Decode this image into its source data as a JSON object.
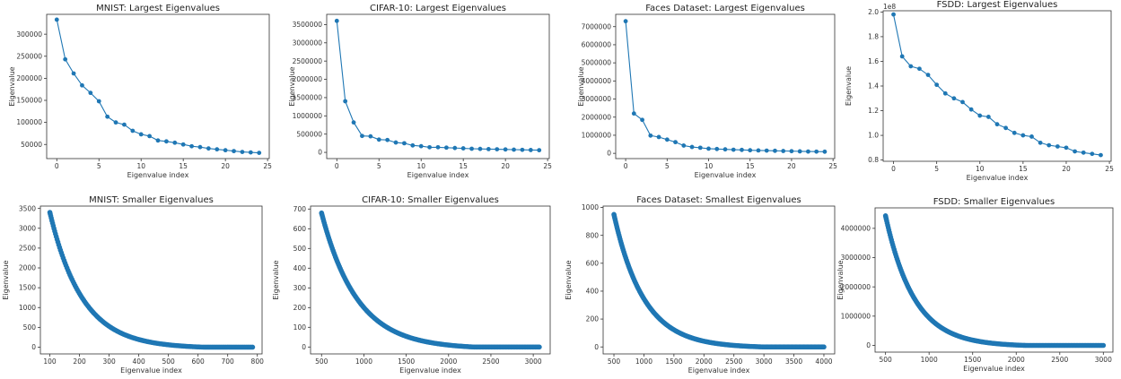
{
  "figure": {
    "colors": {
      "series": "#1f77b4",
      "axis": "#333333"
    }
  },
  "chart_data": [
    {
      "type": "line",
      "title": "MNIST: Largest Eigenvalues",
      "xlabel": "Eigenvalue index",
      "ylabel": "Eigenvalue",
      "xlim": [
        -1.2,
        25.2
      ],
      "ylim": [
        18000,
        345000
      ],
      "xticks": [
        0,
        5,
        10,
        15,
        20,
        25
      ],
      "yticks": [
        50000,
        100000,
        150000,
        200000,
        250000,
        300000
      ],
      "ytick_labels": [
        "50000",
        "100000",
        "150000",
        "200000",
        "250000",
        "300000"
      ],
      "multiplier": "",
      "markers": true,
      "x": [
        0,
        1,
        2,
        3,
        4,
        5,
        6,
        7,
        8,
        9,
        10,
        11,
        12,
        13,
        14,
        15,
        16,
        17,
        18,
        19,
        20,
        21,
        22,
        23,
        24
      ],
      "y": [
        333000,
        243000,
        211000,
        184000,
        167000,
        148000,
        113000,
        100000,
        95000,
        81000,
        73000,
        69000,
        59000,
        57000,
        54000,
        50000,
        46000,
        44000,
        41000,
        39000,
        37000,
        35000,
        33000,
        32000,
        31000
      ]
    },
    {
      "type": "line",
      "title": "CIFAR-10: Largest Eigenvalues",
      "xlabel": "Eigenvalue index",
      "ylabel": "Eigenvalue",
      "xlim": [
        -1.2,
        25.2
      ],
      "ylim": [
        -170000,
        3780000
      ],
      "xticks": [
        0,
        5,
        10,
        15,
        20,
        25
      ],
      "yticks": [
        0,
        500000,
        1000000,
        1500000,
        2000000,
        2500000,
        3000000,
        3500000
      ],
      "ytick_labels": [
        "0",
        "500000",
        "1000000",
        "1500000",
        "2000000",
        "2500000",
        "3000000",
        "3500000"
      ],
      "multiplier": "",
      "markers": true,
      "x": [
        0,
        1,
        2,
        3,
        4,
        5,
        6,
        7,
        8,
        9,
        10,
        11,
        12,
        13,
        14,
        15,
        16,
        17,
        18,
        19,
        20,
        21,
        22,
        23,
        24
      ],
      "y": [
        3600000,
        1400000,
        820000,
        450000,
        440000,
        350000,
        340000,
        270000,
        250000,
        190000,
        170000,
        140000,
        140000,
        130000,
        120000,
        110000,
        100000,
        95000,
        90000,
        85000,
        80000,
        75000,
        70000,
        65000,
        60000
      ]
    },
    {
      "type": "line",
      "title": "Faces Dataset: Largest Eigenvalues",
      "xlabel": "Eigenvalue index",
      "ylabel": "Eigenvalue",
      "xlim": [
        -1.2,
        25.2
      ],
      "ylim": [
        -290000,
        7680000
      ],
      "xticks": [
        0,
        5,
        10,
        15,
        20,
        25
      ],
      "yticks": [
        0,
        1000000,
        2000000,
        3000000,
        4000000,
        5000000,
        6000000,
        7000000
      ],
      "ytick_labels": [
        "0",
        "1000000",
        "2000000",
        "3000000",
        "4000000",
        "5000000",
        "6000000",
        "7000000"
      ],
      "multiplier": "",
      "markers": true,
      "x": [
        0,
        1,
        2,
        3,
        4,
        5,
        6,
        7,
        8,
        9,
        10,
        11,
        12,
        13,
        14,
        15,
        16,
        17,
        18,
        19,
        20,
        21,
        22,
        23,
        24
      ],
      "y": [
        7300000,
        2200000,
        1850000,
        980000,
        900000,
        760000,
        620000,
        430000,
        350000,
        310000,
        260000,
        240000,
        220000,
        200000,
        190000,
        170000,
        160000,
        150000,
        140000,
        130000,
        120000,
        110000,
        100000,
        95000,
        90000
      ]
    },
    {
      "type": "line",
      "title": "FSDD: Largest Eigenvalues",
      "xlabel": "Eigenvalue index",
      "ylabel": "Eigenvalue",
      "xlim": [
        -1.2,
        25.2
      ],
      "ylim": [
        0.79,
        2.01
      ],
      "xticks": [
        0,
        5,
        10,
        15,
        20,
        25
      ],
      "yticks": [
        0.8,
        1.0,
        1.2,
        1.4,
        1.6,
        1.8,
        2.0
      ],
      "ytick_labels": [
        "0.8",
        "1.0",
        "1.2",
        "1.4",
        "1.6",
        "1.8",
        "2.0"
      ],
      "multiplier": "1e8",
      "markers": true,
      "x": [
        0,
        1,
        2,
        3,
        4,
        5,
        6,
        7,
        8,
        9,
        10,
        11,
        12,
        13,
        14,
        15,
        16,
        17,
        18,
        19,
        20,
        21,
        22,
        23,
        24
      ],
      "y": [
        1.98,
        1.64,
        1.56,
        1.54,
        1.49,
        1.41,
        1.34,
        1.3,
        1.27,
        1.21,
        1.16,
        1.15,
        1.09,
        1.06,
        1.02,
        1.0,
        0.99,
        0.94,
        0.92,
        0.91,
        0.9,
        0.87,
        0.86,
        0.85,
        0.84
      ]
    },
    {
      "type": "scatter",
      "title": "MNIST: Smaller Eigenvalues",
      "xlabel": "Eigenvalue index",
      "ylabel": "Eigenvalue",
      "xlim": [
        68,
        816
      ],
      "ylim": [
        -170,
        3560
      ],
      "xticks": [
        100,
        200,
        300,
        400,
        500,
        600,
        700,
        800
      ],
      "yticks": [
        0,
        500,
        1000,
        1500,
        2000,
        2500,
        3000,
        3500
      ],
      "ytick_labels": [
        "0",
        "500",
        "1000",
        "1500",
        "2000",
        "2500",
        "3000",
        "3500"
      ],
      "multiplier": "",
      "curve": {
        "x_start": 100,
        "x_end": 784,
        "y_start": 3400,
        "y_floor": 0,
        "decay_scale": 110,
        "tail_start": 620,
        "n_points": 160
      }
    },
    {
      "type": "scatter",
      "title": "CIFAR-10: Smaller Eigenvalues",
      "xlabel": "Eigenvalue index",
      "ylabel": "Eigenvalue",
      "xlim": [
        370,
        3200
      ],
      "ylim": [
        -35,
        715
      ],
      "xticks": [
        500,
        1000,
        1500,
        2000,
        2500,
        3000
      ],
      "yticks": [
        0,
        100,
        200,
        300,
        400,
        500,
        600,
        700
      ],
      "ytick_labels": [
        "0",
        "100",
        "200",
        "300",
        "400",
        "500",
        "600",
        "700"
      ],
      "multiplier": "",
      "curve": {
        "x_start": 500,
        "x_end": 3072,
        "y_start": 680,
        "y_floor": 0,
        "decay_scale": 420,
        "tail_start": 2300,
        "n_points": 200
      }
    },
    {
      "type": "scatter",
      "title": "Faces Dataset: Smallest Eigenvalues",
      "xlabel": "Eigenvalue index",
      "ylabel": "Eigenvalue",
      "xlim": [
        320,
        4180
      ],
      "ylim": [
        -50,
        1010
      ],
      "xticks": [
        500,
        1000,
        1500,
        2000,
        2500,
        3000,
        3500,
        4000
      ],
      "yticks": [
        0,
        200,
        400,
        600,
        800,
        1000
      ],
      "ytick_labels": [
        "0",
        "200",
        "400",
        "600",
        "800",
        "1000"
      ],
      "multiplier": "",
      "curve": {
        "x_start": 500,
        "x_end": 4000,
        "y_start": 950,
        "y_floor": 0,
        "decay_scale": 500,
        "tail_start": 3000,
        "n_points": 220
      }
    },
    {
      "type": "scatter",
      "title": "FSDD: Smaller Eigenvalues",
      "xlabel": "Eigenvalue index",
      "ylabel": "Eigenvalue",
      "xlim": [
        380,
        3110
      ],
      "ylim": [
        -230000,
        4700000
      ],
      "xticks": [
        500,
        1000,
        1500,
        2000,
        2500,
        3000
      ],
      "yticks": [
        0,
        1000000,
        2000000,
        3000000,
        4000000
      ],
      "ytick_labels": [
        "0",
        "1000000",
        "2000000",
        "3000000",
        "4000000"
      ],
      "multiplier": "",
      "curve": {
        "x_start": 500,
        "x_end": 3000,
        "y_start": 4430000,
        "y_floor": 0,
        "decay_scale": 330,
        "tail_start": 2100,
        "n_points": 200
      }
    }
  ]
}
